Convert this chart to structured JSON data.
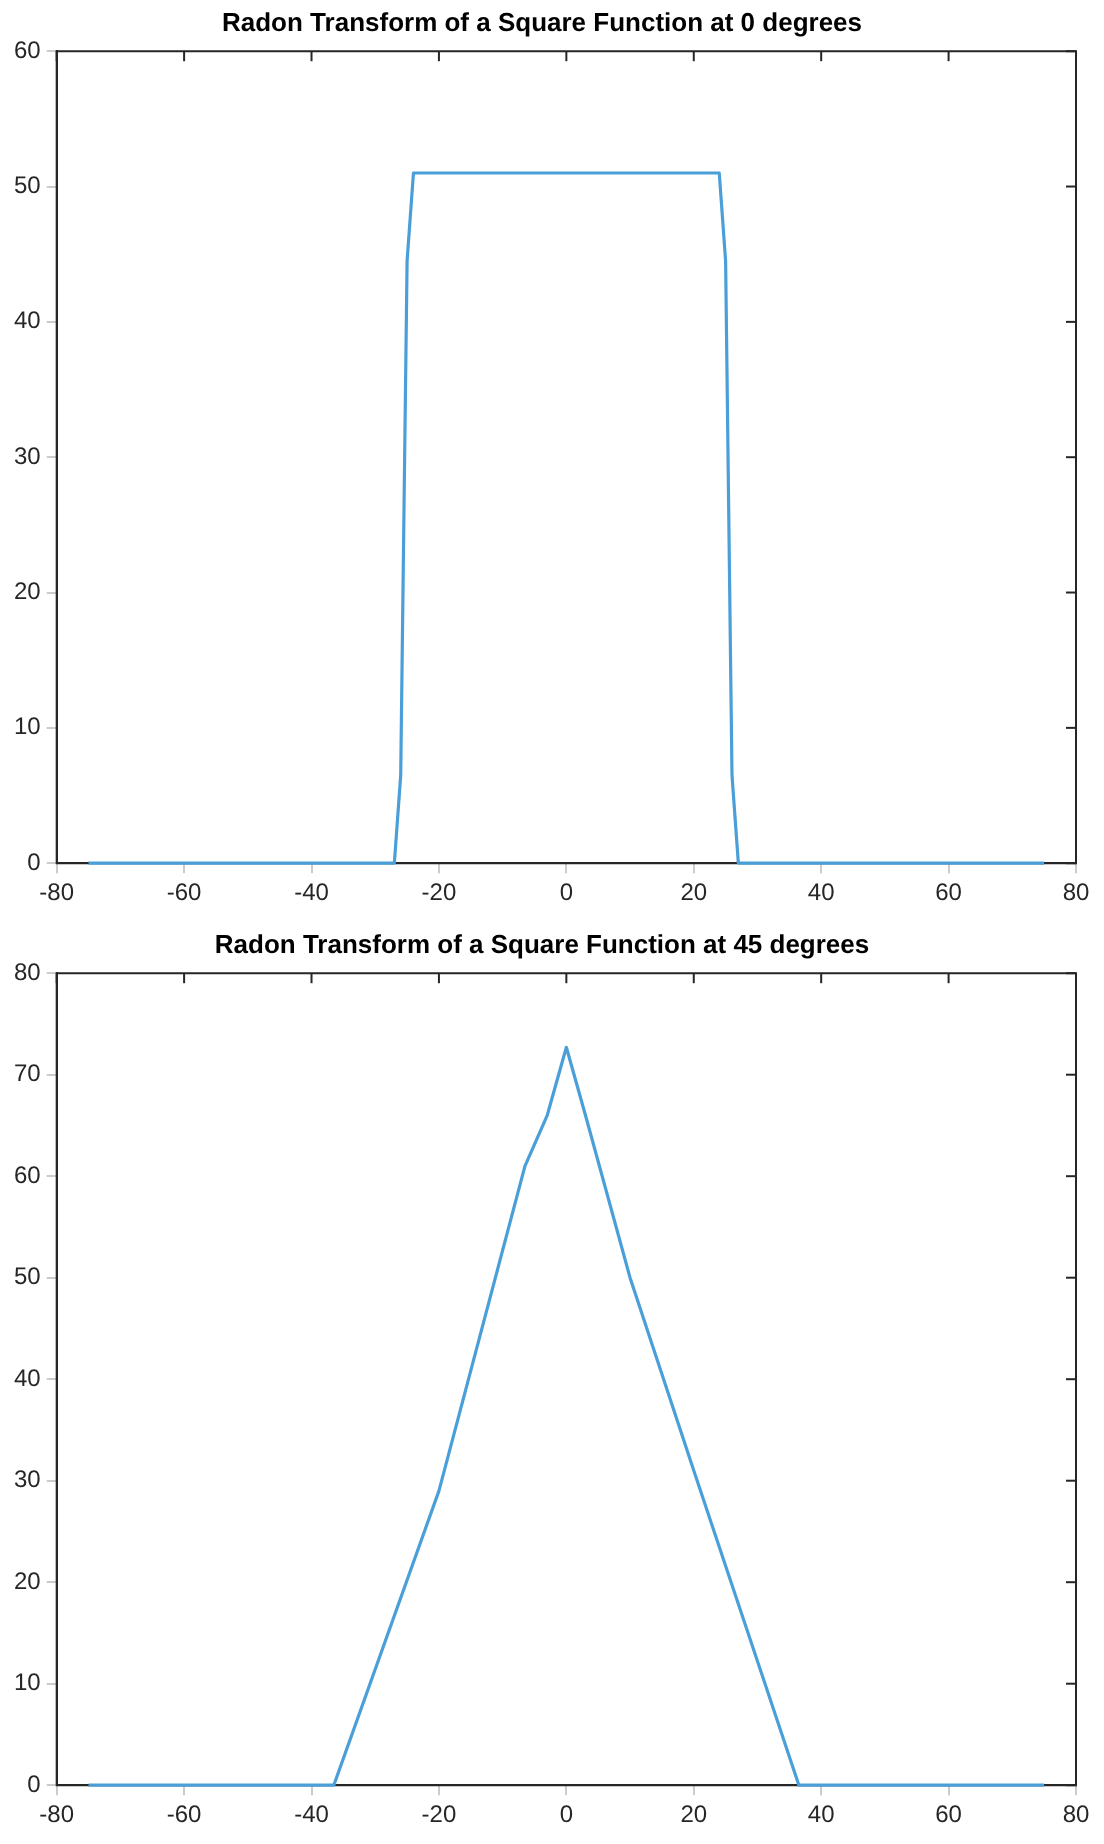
{
  "chart_data": [
    {
      "type": "line",
      "title": "Radon Transform of a Square Function at 0 degrees",
      "x": [
        -75,
        -27,
        -26,
        -25,
        -24,
        24,
        25,
        26,
        27,
        75
      ],
      "values": [
        0,
        0,
        6.5,
        44.5,
        51,
        51,
        44.5,
        6.5,
        0,
        0
      ],
      "color": "#4a9fd8",
      "xlim": [
        -80,
        80
      ],
      "xticks": [
        -80,
        -60,
        -40,
        -20,
        0,
        20,
        40,
        60,
        80
      ],
      "ylim": [
        0,
        60
      ],
      "yticks": [
        0,
        10,
        20,
        30,
        40,
        50,
        60
      ],
      "grid": false,
      "legend": false,
      "marker": "none"
    },
    {
      "type": "line",
      "title": "Radon Transform of a Square Function at 45 degrees",
      "x": [
        -75,
        -36.5,
        -20,
        -6.5,
        -3,
        0,
        3,
        10,
        20,
        36.5,
        75
      ],
      "values": [
        0,
        0,
        29,
        61,
        66,
        72.7,
        66,
        50,
        31,
        0,
        0
      ],
      "color": "#4a9fd8",
      "xlim": [
        -80,
        80
      ],
      "xticks": [
        -80,
        -60,
        -40,
        -20,
        0,
        20,
        40,
        60,
        80
      ],
      "ylim": [
        0,
        80
      ],
      "yticks": [
        0,
        10,
        20,
        30,
        40,
        50,
        60,
        70,
        80
      ],
      "grid": false,
      "legend": false,
      "marker": "none"
    }
  ]
}
